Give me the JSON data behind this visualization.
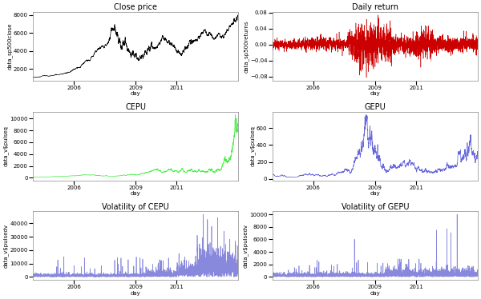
{
  "title_close": "Close price",
  "title_return": "Daily return",
  "title_cepu": "CEPU",
  "title_gepu": "GEPU",
  "title_vol_cepu": "Volatility of CEPU",
  "title_vol_gepu": "Volatility of GEPU",
  "xlabel": "day",
  "ylabel_close": "data_sp500close",
  "ylabel_return": "data_sp500returns",
  "ylabel_cepu": "data_v$pulseq",
  "ylabel_gepu": "data_v$pulseq",
  "ylabel_vol_cepu": "data_v$pulsedv",
  "ylabel_vol_gepu": "data_v$pulsedv",
  "color_close": "#000000",
  "color_return": "#cc0000",
  "color_cepu": "#44ee44",
  "color_gepu": "#6666dd",
  "color_vol_cepu": "#8888dd",
  "color_vol_gepu": "#8888dd",
  "n_points": 2600,
  "seed": 99,
  "start_year": 2004,
  "end_year": 2014,
  "title_fontsize": 7,
  "label_fontsize": 5,
  "tick_fontsize": 5,
  "bg_color": "#ffffff"
}
